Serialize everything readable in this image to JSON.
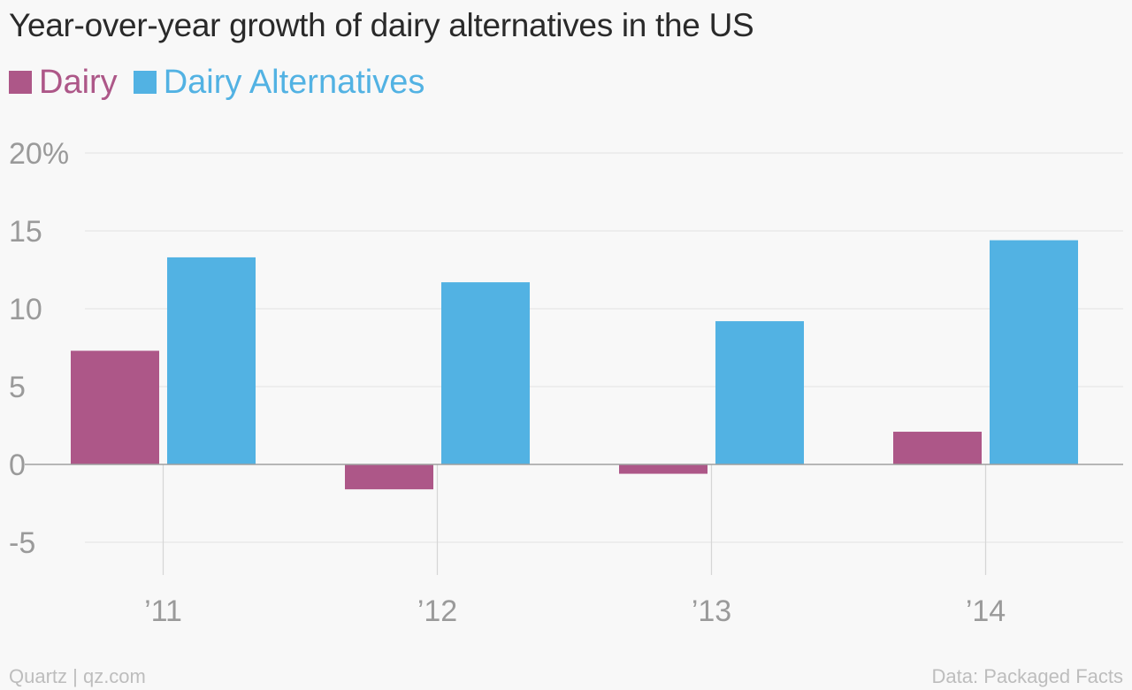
{
  "chart_data": {
    "type": "bar",
    "title": "Year-over-year growth of dairy alternatives in the US",
    "categories": [
      "’11",
      "’12",
      "’13",
      "’14"
    ],
    "series": [
      {
        "name": "Dairy",
        "color": "#ad5788",
        "values": [
          7.3,
          -1.6,
          -0.6,
          2.1
        ]
      },
      {
        "name": "Dairy Alternatives",
        "color": "#52b2e3",
        "values": [
          13.3,
          11.7,
          9.2,
          14.4
        ]
      }
    ],
    "yticks": [
      "20%",
      "15",
      "10",
      "5",
      "0",
      "-5"
    ],
    "ytick_values": [
      20,
      15,
      10,
      5,
      0,
      -5
    ],
    "ylim": [
      -5,
      20
    ],
    "xlabel": "",
    "ylabel": "",
    "grid": true,
    "legend": "top-left"
  },
  "footer": {
    "source_left": "Quartz | qz.com",
    "source_right": "Data: Packaged Facts"
  }
}
